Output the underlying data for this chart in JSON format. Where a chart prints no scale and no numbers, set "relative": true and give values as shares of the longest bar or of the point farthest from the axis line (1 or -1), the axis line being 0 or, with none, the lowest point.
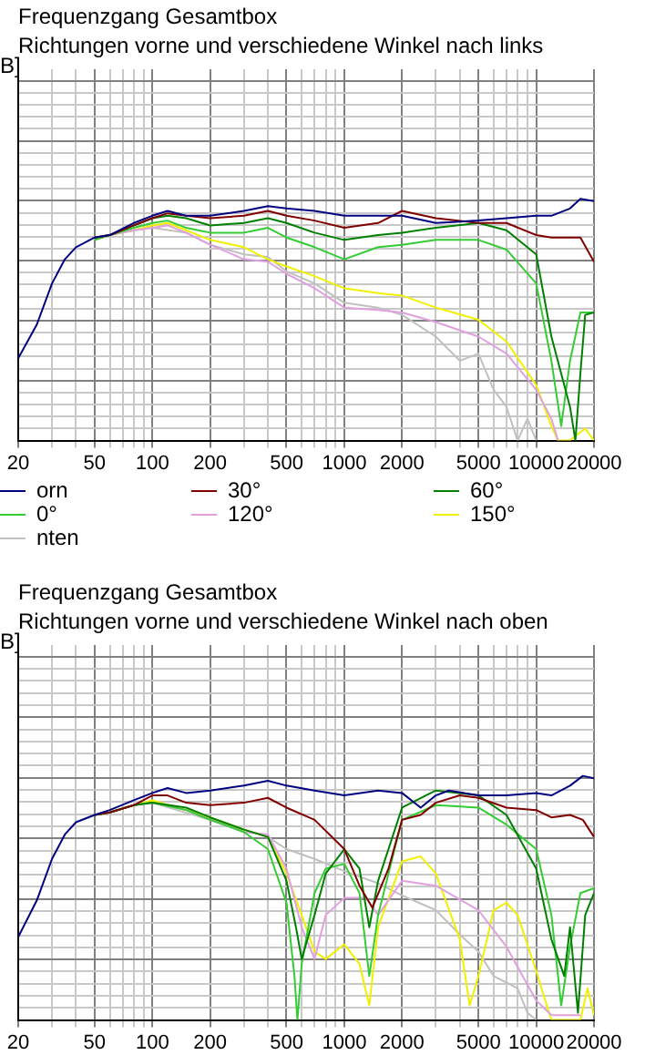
{
  "chart_data": [
    {
      "type": "line",
      "title": "Frequenzgang Gesamtbox",
      "subtitle": "Richtungen vorne und verschiedene Winkel nach links",
      "ylabel": "B]",
      "relative": true,
      "log": "x",
      "grid": true,
      "legend": "bottom",
      "xlim": [
        20,
        20000
      ],
      "xticks": [
        20,
        {
          "value": 30,
          "label": null
        },
        {
          "value": 40,
          "label": null
        },
        50,
        {
          "value": 60,
          "label": null
        },
        {
          "value": 70,
          "label": null
        },
        {
          "value": 80,
          "label": null
        },
        {
          "value": 90,
          "label": null
        },
        100,
        200,
        {
          "value": 300,
          "label": null
        },
        {
          "value": 400,
          "label": null
        },
        500,
        {
          "value": 600,
          "label": null
        },
        {
          "value": 700,
          "label": null
        },
        {
          "value": 800,
          "label": null
        },
        {
          "value": 900,
          "label": null
        },
        1000,
        2000,
        {
          "value": 3000,
          "label": null
        },
        {
          "value": 4000,
          "label": null
        },
        5000,
        {
          "value": 6000,
          "label": null
        },
        {
          "value": 7000,
          "label": null
        },
        {
          "value": 8000,
          "label": null
        },
        {
          "value": 9000,
          "label": null
        },
        10000,
        20000
      ],
      "series": [
        {
          "name": "orn",
          "color": "#000080",
          "x": [
            20,
            25,
            30,
            35,
            40,
            50,
            60,
            80,
            100,
            120,
            150,
            200,
            300,
            400,
            500,
            700,
            1000,
            1500,
            2000,
            3000,
            5000,
            7000,
            10000,
            12000,
            15000,
            17000,
            20000
          ],
          "values": [
            0.34,
            0.48,
            0.65,
            0.75,
            0.8,
            0.84,
            0.85,
            0.9,
            0.93,
            0.95,
            0.93,
            0.93,
            0.95,
            0.97,
            0.96,
            0.95,
            0.93,
            0.93,
            0.93,
            0.9,
            0.91,
            0.92,
            0.93,
            0.93,
            0.96,
            1.0,
            0.99
          ]
        },
        {
          "name": "30°",
          "color": "#800000",
          "x": [
            50,
            60,
            80,
            100,
            120,
            150,
            200,
            300,
            400,
            500,
            700,
            1000,
            1500,
            2000,
            3000,
            5000,
            7000,
            10000,
            12000,
            15000,
            17000,
            20000
          ],
          "values": [
            0.84,
            0.85,
            0.89,
            0.92,
            0.94,
            0.93,
            0.92,
            0.93,
            0.95,
            0.93,
            0.91,
            0.88,
            0.9,
            0.95,
            0.92,
            0.9,
            0.9,
            0.85,
            0.84,
            0.84,
            0.84,
            0.74
          ]
        },
        {
          "name": "60°",
          "color": "#008000",
          "x": [
            50,
            60,
            80,
            100,
            120,
            150,
            200,
            300,
            400,
            500,
            700,
            1000,
            1500,
            2000,
            3000,
            5000,
            7000,
            10000,
            12000,
            15000,
            16000,
            17000,
            18000,
            20000
          ],
          "values": [
            0.84,
            0.85,
            0.89,
            0.92,
            0.93,
            0.92,
            0.89,
            0.9,
            0.92,
            0.9,
            0.86,
            0.83,
            0.85,
            0.86,
            0.88,
            0.9,
            0.87,
            0.77,
            0.43,
            0.14,
            0,
            0.28,
            0.52,
            0.53
          ]
        },
        {
          "name": "0°",
          "color": "#33cc33",
          "x": [
            50,
            60,
            80,
            100,
            120,
            150,
            200,
            300,
            400,
            500,
            700,
            1000,
            1500,
            2000,
            3000,
            5000,
            7000,
            10000,
            12000,
            13500,
            15000,
            17000,
            20000
          ],
          "values": [
            0.83,
            0.85,
            0.88,
            0.9,
            0.91,
            0.88,
            0.86,
            0.86,
            0.88,
            0.84,
            0.8,
            0.75,
            0.8,
            0.81,
            0.83,
            0.83,
            0.79,
            0.65,
            0.33,
            0.06,
            0.33,
            0.53,
            0.53
          ]
        },
        {
          "name": "120°",
          "color": "#e0a0e0",
          "x": [
            50,
            60,
            80,
            100,
            120,
            150,
            200,
            300,
            400,
            500,
            700,
            1000,
            1500,
            2000,
            3000,
            5000,
            7000,
            10000,
            12000,
            13000
          ],
          "values": [
            0.83,
            0.85,
            0.87,
            0.88,
            0.89,
            0.86,
            0.81,
            0.75,
            0.74,
            0.69,
            0.63,
            0.55,
            0.54,
            0.53,
            0.49,
            0.43,
            0.36,
            0.21,
            0.09,
            0
          ]
        },
        {
          "name": "150°",
          "color": "#f0f000",
          "x": [
            50,
            60,
            80,
            100,
            120,
            150,
            200,
            300,
            400,
            500,
            700,
            1000,
            1500,
            2000,
            3000,
            5000,
            7000,
            10000,
            12000,
            13000,
            15000,
            18000,
            20000
          ],
          "values": [
            0.83,
            0.85,
            0.87,
            0.89,
            0.9,
            0.87,
            0.83,
            0.8,
            0.75,
            0.72,
            0.68,
            0.63,
            0.61,
            0.6,
            0.55,
            0.5,
            0.41,
            0.23,
            0.06,
            0,
            0,
            0.05,
            0
          ]
        },
        {
          "name": "nten",
          "color": "#c0c0c0",
          "x": [
            50,
            60,
            80,
            100,
            150,
            200,
            300,
            400,
            500,
            700,
            1000,
            1500,
            2000,
            3000,
            4000,
            5000,
            6000,
            7000,
            8000,
            9000,
            10000
          ],
          "values": [
            0.83,
            0.85,
            0.87,
            0.88,
            0.86,
            0.81,
            0.77,
            0.76,
            0.7,
            0.65,
            0.57,
            0.55,
            0.52,
            0.43,
            0.33,
            0.36,
            0.21,
            0.14,
            0,
            0.09,
            0
          ]
        }
      ]
    },
    {
      "type": "line",
      "title": "Frequenzgang Gesamtbox",
      "subtitle": "Richtungen vorne und verschiedene Winkel nach oben",
      "ylabel": "B]",
      "relative": true,
      "log": "x",
      "grid": true,
      "xlim": [
        20,
        20000
      ],
      "xticks": [
        20,
        {
          "value": 30,
          "label": null
        },
        {
          "value": 40,
          "label": null
        },
        50,
        {
          "value": 60,
          "label": null
        },
        {
          "value": 70,
          "label": null
        },
        {
          "value": 80,
          "label": null
        },
        {
          "value": 90,
          "label": null
        },
        100,
        200,
        {
          "value": 300,
          "label": null
        },
        {
          "value": 400,
          "label": null
        },
        500,
        {
          "value": 600,
          "label": null
        },
        {
          "value": 700,
          "label": null
        },
        {
          "value": 800,
          "label": null
        },
        {
          "value": 900,
          "label": null
        },
        1000,
        2000,
        {
          "value": 3000,
          "label": null
        },
        {
          "value": 4000,
          "label": null
        },
        5000,
        {
          "value": 6000,
          "label": null
        },
        {
          "value": 7000,
          "label": null
        },
        {
          "value": 8000,
          "label": null
        },
        {
          "value": 9000,
          "label": null
        },
        10000,
        20000
      ],
      "series": [
        {
          "color": "#000080",
          "x": [
            20,
            25,
            30,
            35,
            40,
            50,
            60,
            80,
            100,
            120,
            150,
            200,
            300,
            400,
            500,
            700,
            1000,
            1500,
            2000,
            2500,
            3000,
            3500,
            5000,
            7000,
            10000,
            12000,
            15000,
            17500,
            20000
          ],
          "values": [
            0.34,
            0.49,
            0.66,
            0.76,
            0.81,
            0.84,
            0.86,
            0.9,
            0.93,
            0.95,
            0.93,
            0.94,
            0.96,
            0.98,
            0.96,
            0.94,
            0.92,
            0.94,
            0.93,
            0.87,
            0.92,
            0.94,
            0.92,
            0.92,
            0.93,
            0.92,
            0.96,
            1.0,
            0.99
          ]
        },
        {
          "color": "#800000",
          "x": [
            50,
            60,
            80,
            100,
            120,
            150,
            200,
            300,
            400,
            500,
            700,
            1000,
            1200,
            1400,
            1700,
            2000,
            2500,
            3000,
            4000,
            5000,
            7000,
            10000,
            12000,
            15000,
            17500,
            20000
          ],
          "values": [
            0.84,
            0.85,
            0.88,
            0.92,
            0.92,
            0.89,
            0.88,
            0.89,
            0.91,
            0.87,
            0.82,
            0.7,
            0.55,
            0.46,
            0.62,
            0.82,
            0.84,
            0.89,
            0.92,
            0.91,
            0.87,
            0.86,
            0.83,
            0.84,
            0.82,
            0.75
          ]
        },
        {
          "color": "#008000",
          "x": [
            50,
            60,
            80,
            100,
            150,
            200,
            300,
            400,
            500,
            560,
            600,
            700,
            800,
            1000,
            1200,
            1350,
            1500,
            2000,
            3000,
            5000,
            7000,
            10000,
            12000,
            14000,
            15000,
            16500,
            18000,
            20000
          ],
          "values": [
            0.84,
            0.85,
            0.88,
            0.89,
            0.87,
            0.83,
            0.78,
            0.75,
            0.57,
            0.38,
            0.25,
            0.43,
            0.6,
            0.7,
            0.62,
            0.38,
            0.57,
            0.87,
            0.94,
            0.92,
            0.84,
            0.62,
            0.33,
            0.18,
            0.38,
            0.03,
            0.43,
            0.52
          ]
        },
        {
          "color": "#33cc33",
          "x": [
            50,
            60,
            80,
            100,
            150,
            200,
            300,
            400,
            500,
            550,
            570,
            600,
            700,
            800,
            1000,
            1200,
            1350,
            1500,
            2000,
            3000,
            5000,
            7000,
            10000,
            12000,
            13500,
            15000,
            17000,
            20000
          ],
          "values": [
            0.84,
            0.85,
            0.88,
            0.89,
            0.86,
            0.82,
            0.77,
            0.7,
            0.48,
            0.18,
            0,
            0.23,
            0.52,
            0.62,
            0.64,
            0.52,
            0.18,
            0.43,
            0.82,
            0.88,
            0.87,
            0.8,
            0.7,
            0.43,
            0.06,
            0.3,
            0.52,
            0.54
          ]
        },
        {
          "color": "#e0a0e0",
          "x": [
            50,
            60,
            80,
            100,
            150,
            200,
            300,
            400,
            500,
            600,
            700,
            800,
            1000,
            1300,
            1500,
            2000,
            3000,
            5000,
            7000,
            10000,
            12000,
            17000
          ],
          "values": [
            0.84,
            0.85,
            0.88,
            0.89,
            0.86,
            0.82,
            0.77,
            0.76,
            0.62,
            0.38,
            0.25,
            0.43,
            0.5,
            0.5,
            0.43,
            0.57,
            0.55,
            0.45,
            0.3,
            0.08,
            0.02,
            0.02
          ]
        },
        {
          "color": "#f0f000",
          "x": [
            50,
            60,
            80,
            100,
            150,
            200,
            300,
            400,
            500,
            600,
            700,
            800,
            1000,
            1200,
            1350,
            1500,
            2000,
            2500,
            3000,
            4000,
            4500,
            5000,
            6000,
            7000,
            8000,
            10000,
            12000,
            17000,
            18500,
            20000
          ],
          "values": [
            0.84,
            0.85,
            0.88,
            0.9,
            0.86,
            0.83,
            0.78,
            0.75,
            0.6,
            0.43,
            0.28,
            0.25,
            0.31,
            0.23,
            0.06,
            0.38,
            0.65,
            0.67,
            0.6,
            0.33,
            0.06,
            0.18,
            0.45,
            0.48,
            0.43,
            0.2,
            0,
            0,
            0.13,
            0.02
          ]
        },
        {
          "color": "#c0c0c0",
          "x": [
            50,
            60,
            80,
            100,
            200,
            300,
            400,
            500,
            700,
            1000,
            1500,
            2000,
            3000,
            4000,
            5000,
            6000,
            8000,
            9000,
            10000
          ],
          "values": [
            0.84,
            0.85,
            0.88,
            0.89,
            0.82,
            0.78,
            0.75,
            0.7,
            0.66,
            0.61,
            0.56,
            0.51,
            0.45,
            0.35,
            0.28,
            0.18,
            0.13,
            0.03,
            0
          ]
        }
      ]
    }
  ]
}
